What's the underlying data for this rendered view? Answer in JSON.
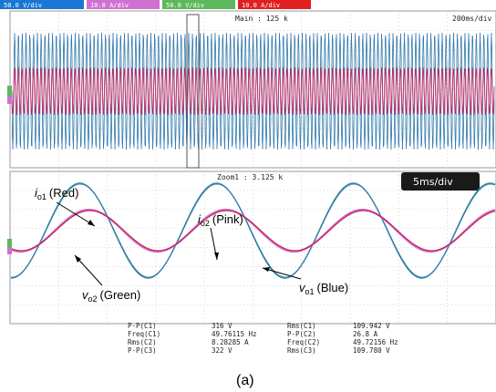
{
  "channel_tags": [
    {
      "id": "C1",
      "text": "50.0 V/div",
      "bg": "#1976d2"
    },
    {
      "id": "C2",
      "text": "10.0 A/div",
      "bg": "#d070d0"
    },
    {
      "id": "C3",
      "text": "50.0 V/div",
      "bg": "#5cb85c"
    },
    {
      "id": "C4",
      "text": "10.0 A/div",
      "bg": "#e02020"
    }
  ],
  "header": {
    "main": "Main : 125 k",
    "timebase": "200ms/div",
    "zoom": "Zoom1 : 3.125 k",
    "zoom_timebase": "5ms/div"
  },
  "labels": {
    "io1_main": "i",
    "io1_sub": "o1",
    "io1_color": "(Red)",
    "io2_main": "i",
    "io2_sub": "o2",
    "io2_color": "(Pink)",
    "vo2_main": "v",
    "vo2_sub": "o2",
    "vo2_color": "(Green)",
    "vo1_main": "v",
    "vo1_sub": "o1",
    "vo1_color": "(Blue)"
  },
  "measurements": [
    {
      "name": "P-P(C1)",
      "value": "316 V",
      "name2": "Rms(C1)",
      "value2": "109.942 V"
    },
    {
      "name": "Freq(C1)",
      "value": "49.76115 Hz",
      "name2": "P-P(C2)",
      "value2": "26.8 A"
    },
    {
      "name": "Rms(C2)",
      "value": "8.28285 A",
      "name2": "Freq(C2)",
      "value2": "49.72156 Hz"
    },
    {
      "name": "P-P(C3)",
      "value": "322 V",
      "name2": "Rms(C3)",
      "value2": "109.780 V"
    }
  ],
  "caption": "(a)",
  "colors": {
    "voltage": "#2a8a8a",
    "current_red": "#c0204a",
    "current_pink": "#d070d0",
    "grid": "#b8b8b8",
    "badge_bg": "#1a1a1a"
  },
  "waveform": {
    "voltage_peak_v": 158,
    "current_peak_a": 13.4,
    "frequency_hz": 50,
    "zoom_ms_per_div": 5
  }
}
